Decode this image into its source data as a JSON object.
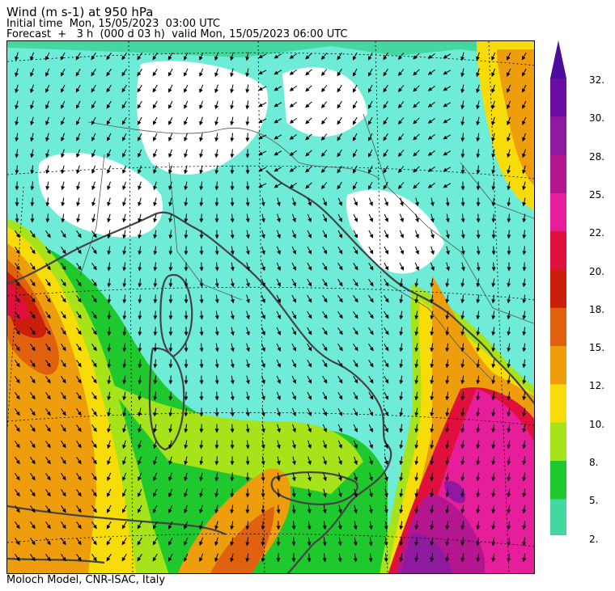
{
  "header": {
    "title": "Wind (m s-1) at 950 hPa",
    "initial_time": "Initial time  Mon, 15/05/2023  03:00 UTC",
    "forecast": "Forecast  +   3 h  (000 d 03 h)  valid Mon, 15/05/2023 06:00 UTC"
  },
  "footer": {
    "credit": "Moloch Model, CNR-ISAC, Italy"
  },
  "colorbar": {
    "labels": [
      "32.",
      "30.",
      "28.",
      "25.",
      "22.",
      "20.",
      "18.",
      "15.",
      "12.",
      "10.",
      "8.",
      "5.",
      "2."
    ],
    "colors": [
      "#6a0da0",
      "#8e1aa0",
      "#b3168f",
      "#e61e9b",
      "#e0103c",
      "#cc1f0a",
      "#e0620e",
      "#ee9e0c",
      "#f7dc0a",
      "#a6e31a",
      "#1ec82d",
      "#44d7a0",
      "#6eecd8"
    ],
    "extend_color": "#4b0c9c"
  }
}
